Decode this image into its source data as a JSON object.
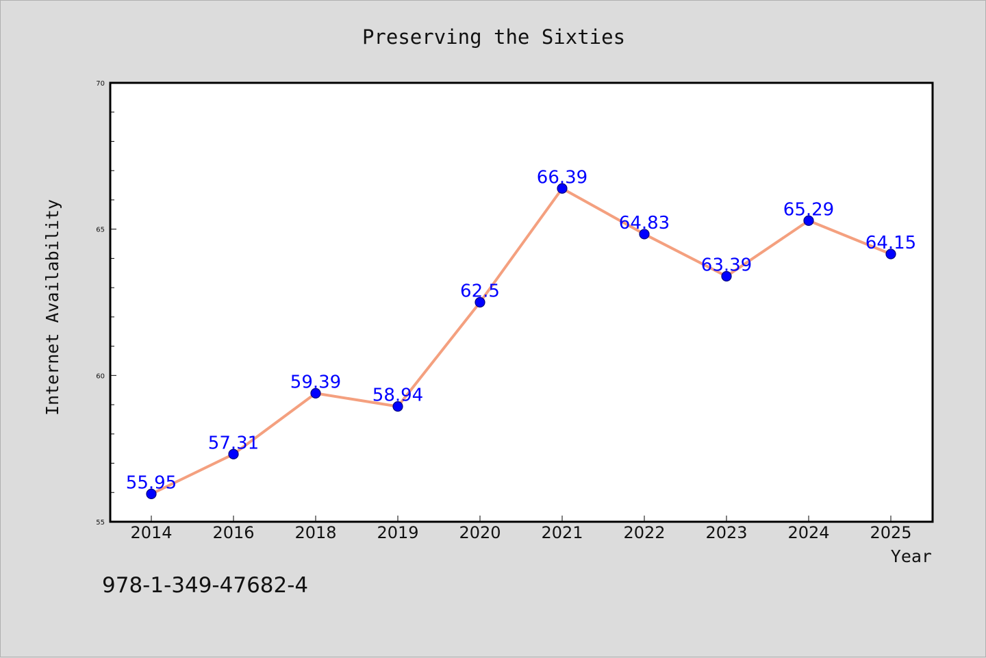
{
  "chart_data": {
    "type": "line",
    "title": "Preserving the Sixties",
    "xlabel": "Year",
    "ylabel": "Internet Availability",
    "categories": [
      "2014",
      "2016",
      "2018",
      "2019",
      "2020",
      "2021",
      "2022",
      "2023",
      "2024",
      "2025"
    ],
    "series": [
      {
        "values": [
          55.95,
          57.31,
          59.39,
          58.94,
          62.5,
          66.39,
          64.83,
          63.39,
          65.29,
          64.15
        ],
        "data_labels": [
          "55.95",
          "57.31",
          "59.39",
          "58.94",
          "62.5",
          "66.39",
          "64.83",
          "63.39",
          "65.29",
          "64.15"
        ]
      }
    ],
    "ylim": [
      55,
      70
    ],
    "yticks": [
      55,
      60,
      65,
      70
    ],
    "ytick_labels": [
      "55",
      "60",
      "65",
      "70"
    ],
    "grid": false,
    "legend": "none",
    "colors": {
      "line": "#f4a07f",
      "marker": "#0000ff",
      "marker_edge": "#000080",
      "data_label": "#0000ff",
      "background": "#dcdcdc",
      "plot_background": "#ffffff"
    }
  },
  "footer": {
    "text": "978-1-349-47682-4"
  }
}
